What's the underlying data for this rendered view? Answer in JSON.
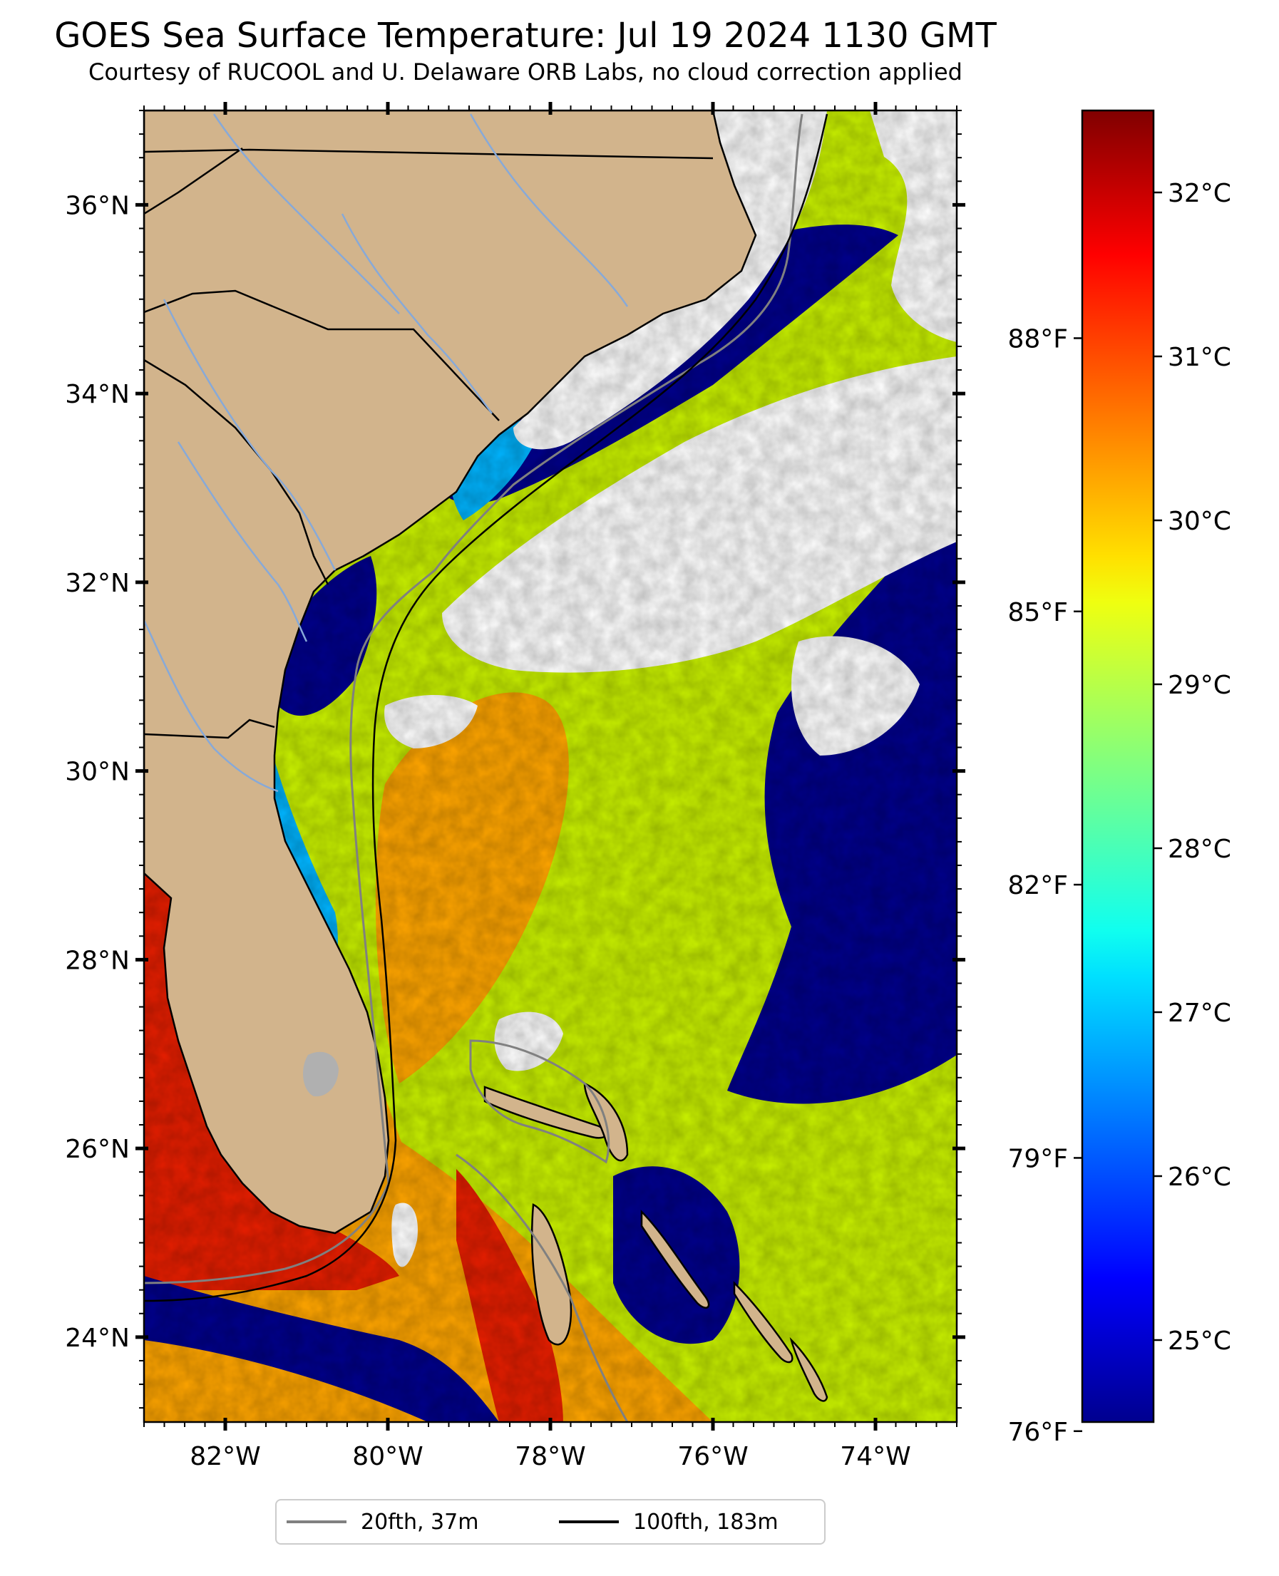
{
  "title": "GOES Sea Surface Temperature: Jul 19 2024 1130 GMT",
  "subtitle": "Courtesy of RUCOOL and U. Delaware ORB Labs, no cloud correction applied",
  "map": {
    "lon_range": [
      -83.0,
      -73.0
    ],
    "lat_range": [
      23.1,
      37.0
    ],
    "lat_labels": [
      "36°N",
      "34°N",
      "32°N",
      "30°N",
      "28°N",
      "26°N",
      "24°N"
    ],
    "lat_values": [
      36,
      34,
      32,
      30,
      28,
      26,
      24
    ],
    "lon_labels": [
      "82°W",
      "80°W",
      "78°W",
      "76°W",
      "74°W"
    ],
    "lon_values": [
      -82,
      -80,
      -78,
      -76,
      -74
    ],
    "colors": {
      "land": "#d2b48c",
      "cloud": "#ffffff",
      "cool_water": "#00008b",
      "gulf_stream": "#ffa500",
      "shelf_water": "#ffd700",
      "offshore_water": "#c8f000",
      "nearshore_cool": "#00b4ff",
      "hot_water": "#e61e00",
      "coastline": "#000000",
      "rivers": "#87a9d8",
      "contour_20fth": "#808080",
      "contour_100fth": "#000000"
    }
  },
  "colorbar": {
    "colormap": "jet",
    "celsius_range": [
      24.5,
      32.5
    ],
    "celsius_labels": [
      "32°C",
      "31°C",
      "30°C",
      "29°C",
      "28°C",
      "27°C",
      "26°C",
      "25°C"
    ],
    "celsius_values": [
      32,
      31,
      30,
      29,
      28,
      27,
      26,
      25
    ],
    "fahrenheit_labels": [
      "88°F",
      "85°F",
      "82°F",
      "79°F",
      "76°F"
    ],
    "fahrenheit_values": [
      88,
      85,
      82,
      79,
      76
    ]
  },
  "legend": {
    "items": [
      {
        "label": "20fth, 37m",
        "color": "#808080"
      },
      {
        "label": "100fth, 183m",
        "color": "#000000"
      }
    ]
  }
}
